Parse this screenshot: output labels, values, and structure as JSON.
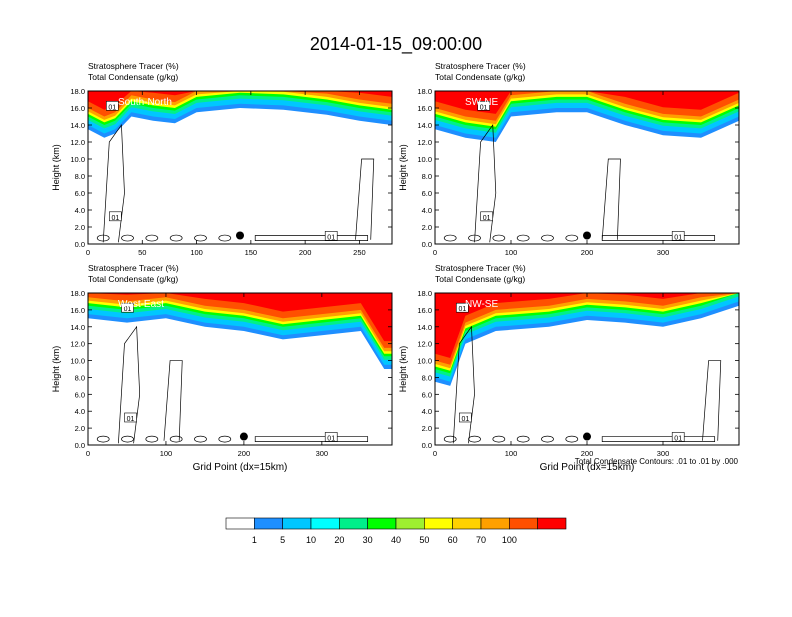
{
  "figure": {
    "title": "2014-01-15_09:00:00",
    "footer_note": "Total Condensate Contours: .01 to .01 by .000"
  },
  "colorbar": {
    "labels": [
      "1",
      "5",
      "10",
      "20",
      "30",
      "40",
      "50",
      "60",
      "70",
      "100"
    ],
    "colors": [
      "#ffffff",
      "#1e8fff",
      "#00c7ff",
      "#00ffff",
      "#00f08a",
      "#00ff00",
      "#9ef030",
      "#ffff00",
      "#ffd200",
      "#ffa000",
      "#ff5000",
      "#ff0000"
    ]
  },
  "chart_data": [
    {
      "type": "heatmap",
      "panel_label": "South-North",
      "field_label": "Stratosphere Tracer   (%)",
      "contour_label": "Total Condensate   (g/kg)",
      "ylabel": "Height (km)",
      "xlabel": "",
      "xlim": [
        0,
        280
      ],
      "ylim": [
        0,
        18
      ],
      "xticks": [
        0,
        50,
        100,
        150,
        200,
        250
      ],
      "yticks": [
        "0.0",
        "2.0",
        "4.0",
        "6.0",
        "8.0",
        "10.0",
        "12.0",
        "14.0",
        "16.0",
        "18.0"
      ],
      "contour_value_label": "01",
      "marker_x": 140,
      "tracer_top_base_km": [
        [
          0,
          13.5
        ],
        [
          15,
          12.5
        ],
        [
          25,
          13.0
        ],
        [
          40,
          15.0
        ],
        [
          60,
          14.5
        ],
        [
          80,
          14.2
        ],
        [
          100,
          15.5
        ],
        [
          140,
          16.0
        ],
        [
          180,
          15.8
        ],
        [
          220,
          15.2
        ],
        [
          250,
          14.5
        ],
        [
          280,
          14.0
        ]
      ]
    },
    {
      "type": "heatmap",
      "panel_label": "SW-NE",
      "field_label": "Stratosphere Tracer   (%)",
      "contour_label": "Total Condensate   (g/kg)",
      "ylabel": "Height (km)",
      "xlabel": "",
      "xlim": [
        0,
        400
      ],
      "ylim": [
        0,
        18
      ],
      "xticks": [
        0,
        100,
        200,
        300
      ],
      "yticks": [
        "0.0",
        "2.0",
        "4.0",
        "6.0",
        "8.0",
        "10.0",
        "12.0",
        "14.0",
        "16.0",
        "18.0"
      ],
      "contour_value_label": "01",
      "marker_x": 200,
      "tracer_top_base_km": [
        [
          0,
          13.5
        ],
        [
          40,
          12.5
        ],
        [
          80,
          12.0
        ],
        [
          100,
          15.0
        ],
        [
          160,
          15.5
        ],
        [
          200,
          15.5
        ],
        [
          250,
          14.0
        ],
        [
          300,
          12.8
        ],
        [
          350,
          12.5
        ],
        [
          400,
          14.5
        ]
      ]
    },
    {
      "type": "heatmap",
      "panel_label": "West-East",
      "field_label": "Stratosphere Tracer   (%)",
      "contour_label": "Total Condensate   (g/kg)",
      "ylabel": "Height (km)",
      "xlabel": "Grid Point (dx=15km)",
      "xlim": [
        0,
        390
      ],
      "ylim": [
        0,
        18
      ],
      "xticks": [
        0,
        100,
        200,
        300
      ],
      "yticks": [
        "0.0",
        "2.0",
        "4.0",
        "6.0",
        "8.0",
        "10.0",
        "12.0",
        "14.0",
        "16.0",
        "18.0"
      ],
      "contour_value_label": "01",
      "marker_x": 200,
      "tracer_top_base_km": [
        [
          0,
          15.0
        ],
        [
          50,
          14.5
        ],
        [
          100,
          15.0
        ],
        [
          150,
          14.0
        ],
        [
          200,
          13.5
        ],
        [
          250,
          12.5
        ],
        [
          300,
          13.0
        ],
        [
          350,
          13.5
        ],
        [
          380,
          9.0
        ],
        [
          390,
          9.0
        ]
      ]
    },
    {
      "type": "heatmap",
      "panel_label": "NW-SE",
      "field_label": "Stratosphere Tracer   (%)",
      "contour_label": "Total Condensate   (g/kg)",
      "ylabel": "Height (km)",
      "xlabel": "Grid Point (dx=15km)",
      "xlim": [
        0,
        400
      ],
      "ylim": [
        0,
        18
      ],
      "xticks": [
        0,
        100,
        200,
        300
      ],
      "yticks": [
        "0.0",
        "2.0",
        "4.0",
        "6.0",
        "8.0",
        "10.0",
        "12.0",
        "14.0",
        "16.0",
        "18.0"
      ],
      "contour_value_label": "01",
      "marker_x": 200,
      "tracer_top_base_km": [
        [
          0,
          7.5
        ],
        [
          20,
          7.0
        ],
        [
          40,
          12.0
        ],
        [
          80,
          13.5
        ],
        [
          150,
          14.0
        ],
        [
          200,
          14.8
        ],
        [
          250,
          14.5
        ],
        [
          300,
          14.0
        ],
        [
          350,
          15.0
        ],
        [
          400,
          16.5
        ]
      ]
    }
  ]
}
